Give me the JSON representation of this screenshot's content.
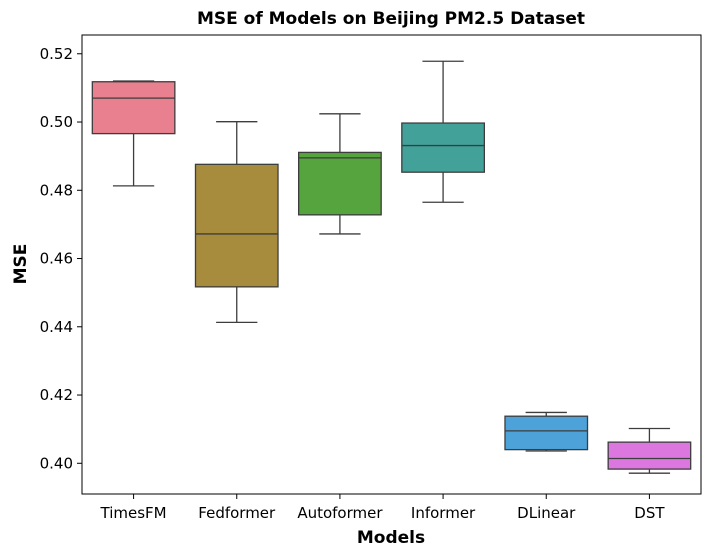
{
  "chart_data": {
    "type": "box",
    "title": "MSE of Models on Beijing PM2.5 Dataset",
    "xlabel": "Models",
    "ylabel": "MSE",
    "ylim": [
      0.391,
      0.5255
    ],
    "yticks": [
      0.4,
      0.42,
      0.44,
      0.46,
      0.48,
      0.5,
      0.52
    ],
    "ytick_labels": [
      "0.40",
      "0.42",
      "0.44",
      "0.46",
      "0.48",
      "0.50",
      "0.52"
    ],
    "grid": false,
    "categories": [
      "TimesFM",
      "Fedformer",
      "Autoformer",
      "Informer",
      "DLinear",
      "DST"
    ],
    "series": [
      {
        "name": "TimesFM",
        "whisker_low": 0.4813,
        "q1": 0.4966,
        "median": 0.507,
        "q3": 0.5118,
        "whisker_high": 0.512,
        "color": "#e8808f"
      },
      {
        "name": "Fedformer",
        "whisker_low": 0.4413,
        "q1": 0.4517,
        "median": 0.4672,
        "q3": 0.4876,
        "whisker_high": 0.5001,
        "color": "#a78c3d"
      },
      {
        "name": "Autoformer",
        "whisker_low": 0.4672,
        "q1": 0.4728,
        "median": 0.4895,
        "q3": 0.4911,
        "whisker_high": 0.5024,
        "color": "#56a43d"
      },
      {
        "name": "Informer",
        "whisker_low": 0.4765,
        "q1": 0.4853,
        "median": 0.4931,
        "q3": 0.4997,
        "whisker_high": 0.5178,
        "color": "#42a29a"
      },
      {
        "name": "DLinear",
        "whisker_low": 0.4036,
        "q1": 0.404,
        "median": 0.4095,
        "q3": 0.4138,
        "whisker_high": 0.4149,
        "color": "#4da2d9"
      },
      {
        "name": "DST",
        "whisker_low": 0.3971,
        "q1": 0.3983,
        "median": 0.4014,
        "q3": 0.4062,
        "whisker_high": 0.4102,
        "color": "#dd77e0"
      }
    ]
  }
}
